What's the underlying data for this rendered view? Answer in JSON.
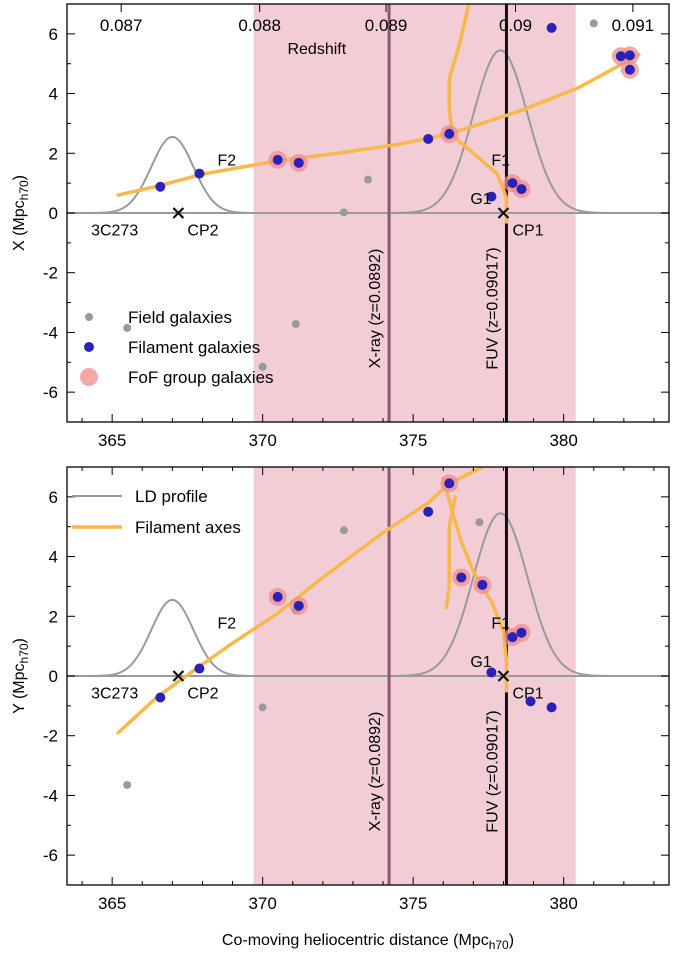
{
  "colors": {
    "band": "#f2cdd6",
    "xray_line": "#8c5a6e",
    "fuv_line": "#111111",
    "green_axis": "#7cc36a",
    "filament_axis": "#f8b84a",
    "ld_profile": "#9a9a9a",
    "field": "#9a9a9a",
    "filament": "#2a22b8",
    "fof": "#f08c8c"
  },
  "chart_data": [
    {
      "type": "scatter",
      "panel": "top",
      "xlabel": "",
      "ylabel": "X (Mpc",
      "ylabel_sub": "h70",
      "ylabel_tail": ")",
      "xlim": [
        363.5,
        383.5
      ],
      "ylim": [
        -7,
        7
      ],
      "x_ticks": [
        "365",
        "370",
        "375",
        "380"
      ],
      "x_tick_values": [
        365,
        370,
        375,
        380
      ],
      "y_ticks": [
        "6",
        "4",
        "2",
        "0",
        "-2",
        "-4",
        "-6"
      ],
      "y_tick_values": [
        6,
        4,
        2,
        0,
        -2,
        -4,
        -6
      ],
      "top_axis_label": "Redshift",
      "redshift_ticks": [
        "0.087",
        "0.088",
        "0.089",
        "0.09",
        "0.091"
      ],
      "redshift_tick_positions": [
        365.3,
        369.9,
        374.1,
        378.4,
        382.3
      ],
      "band_range": [
        369.7,
        380.4
      ],
      "vertical_lines": [
        {
          "x": 374.2,
          "label": "X-ray (z=0.0892)",
          "kind": "xray"
        },
        {
          "x": 378.1,
          "label": "FUV (z=0.09017)",
          "kind": "fuv"
        }
      ],
      "ld_profiles": [
        {
          "center": 367.0,
          "amp": 2.55,
          "sigma": 0.7
        },
        {
          "center": 377.9,
          "amp": 5.45,
          "sigma": 0.9
        }
      ],
      "filament_axes": [
        {
          "name": "",
          "points": [
            [
              365.2,
              0.6
            ],
            [
              366.5,
              0.9
            ],
            [
              368.0,
              1.3
            ],
            [
              370.5,
              1.75
            ],
            [
              372.5,
              2.0
            ],
            [
              374.5,
              2.3
            ],
            [
              376.2,
              2.65
            ],
            [
              378.5,
              3.4
            ],
            [
              380.5,
              4.2
            ],
            [
              382.5,
              5.3
            ]
          ]
        },
        {
          "name": "",
          "points": [
            [
              376.9,
              7.2
            ],
            [
              376.5,
              5.5
            ],
            [
              376.2,
              4.5
            ],
            [
              376.2,
              3.5
            ],
            [
              376.3,
              2.6
            ],
            [
              377.0,
              2.0
            ],
            [
              377.8,
              1.3
            ],
            [
              378.1,
              0.5
            ],
            [
              378.1,
              -0.3
            ]
          ]
        }
      ],
      "field_galaxies": [
        [
          365.5,
          -3.85
        ],
        [
          371.1,
          -3.72
        ],
        [
          373.5,
          1.12
        ],
        [
          372.7,
          0.02
        ],
        [
          370.0,
          -5.15
        ],
        [
          376.2,
          2.75
        ],
        [
          381.0,
          6.35
        ]
      ],
      "filament_galaxies": [
        [
          366.6,
          0.88
        ],
        [
          367.9,
          1.32
        ],
        [
          370.5,
          1.78
        ],
        [
          371.2,
          1.68
        ],
        [
          375.5,
          2.48
        ],
        [
          376.2,
          2.65
        ],
        [
          377.6,
          0.55
        ],
        [
          378.3,
          1.0
        ],
        [
          378.6,
          0.8
        ],
        [
          379.6,
          6.2
        ],
        [
          381.9,
          5.25
        ],
        [
          382.2,
          5.28
        ],
        [
          382.2,
          4.8
        ]
      ],
      "fof_galaxies": [
        [
          370.5,
          1.78
        ],
        [
          371.2,
          1.68
        ],
        [
          376.2,
          2.65
        ],
        [
          378.3,
          1.0
        ],
        [
          378.6,
          0.8
        ],
        [
          381.9,
          5.25
        ],
        [
          382.2,
          5.28
        ],
        [
          382.2,
          4.8
        ]
      ],
      "markers": [
        {
          "x": 367.2,
          "y": 0.0,
          "label": "CP2"
        },
        {
          "x": 378.0,
          "y": 0.0,
          "label": "CP1"
        }
      ],
      "annotations": [
        {
          "text": "3C273",
          "x": 364.3,
          "y": -0.55
        },
        {
          "text": "CP2",
          "x": 367.5,
          "y": -0.55
        },
        {
          "text": "F2",
          "x": 368.5,
          "y": 1.8
        },
        {
          "text": "F1",
          "x": 377.6,
          "y": 1.8
        },
        {
          "text": "G1",
          "x": 376.9,
          "y": 0.5
        },
        {
          "text": "CP1",
          "x": 378.3,
          "y": -0.55
        }
      ],
      "legend": [
        {
          "label": "Field galaxies",
          "kind": "field"
        },
        {
          "label": "Filament galaxies",
          "kind": "filament"
        },
        {
          "label": "FoF group galaxies",
          "kind": "fof"
        }
      ],
      "legend_position": "bottom-left"
    },
    {
      "type": "scatter",
      "panel": "bottom",
      "xlabel": "Co-moving heliocentric distance (Mpc",
      "xlabel_sub": "h70",
      "xlabel_tail": ")",
      "ylabel": "Y (Mpc",
      "ylabel_sub": "h70",
      "ylabel_tail": ")",
      "xlim": [
        363.5,
        383.5
      ],
      "ylim": [
        -7,
        7
      ],
      "x_ticks": [
        "365",
        "370",
        "375",
        "380"
      ],
      "x_tick_values": [
        365,
        370,
        375,
        380
      ],
      "y_ticks": [
        "6",
        "4",
        "2",
        "0",
        "-2",
        "-4",
        "-6"
      ],
      "y_tick_values": [
        6,
        4,
        2,
        0,
        -2,
        -4,
        -6
      ],
      "band_range": [
        369.7,
        380.4
      ],
      "vertical_lines": [
        {
          "x": 374.2,
          "label": "X-ray (z=0.0892)",
          "kind": "xray"
        },
        {
          "x": 378.1,
          "label": "FUV (z=0.09017)",
          "kind": "fuv"
        }
      ],
      "ld_profiles": [
        {
          "center": 367.0,
          "amp": 2.55,
          "sigma": 0.7
        },
        {
          "center": 377.9,
          "amp": 5.45,
          "sigma": 0.9
        }
      ],
      "filament_axes": [
        {
          "name": "",
          "points": [
            [
              365.2,
              -1.9
            ],
            [
              366.5,
              -0.7
            ],
            [
              367.8,
              0.25
            ],
            [
              369.0,
              1.1
            ],
            [
              370.5,
              2.1
            ],
            [
              372.0,
              3.3
            ],
            [
              374.0,
              4.8
            ],
            [
              375.5,
              5.8
            ],
            [
              376.2,
              6.45
            ],
            [
              377.3,
              7.0
            ]
          ]
        },
        {
          "name": "",
          "points": [
            [
              376.0,
              6.6
            ],
            [
              376.3,
              5.5
            ],
            [
              376.6,
              4.5
            ],
            [
              377.0,
              3.5
            ],
            [
              377.6,
              2.5
            ],
            [
              378.0,
              1.5
            ],
            [
              378.1,
              0.5
            ],
            [
              378.1,
              -0.5
            ]
          ]
        },
        {
          "name": "",
          "points": [
            [
              376.4,
              6.0
            ],
            [
              376.2,
              5.0
            ],
            [
              376.2,
              4.0
            ],
            [
              376.2,
              3.0
            ],
            [
              376.1,
              2.3
            ]
          ]
        }
      ],
      "field_galaxies": [
        [
          365.5,
          -3.65
        ],
        [
          372.7,
          4.88
        ],
        [
          371.1,
          2.2
        ],
        [
          370.0,
          -1.05
        ],
        [
          376.2,
          6.5
        ],
        [
          377.2,
          5.15
        ]
      ],
      "filament_galaxies": [
        [
          366.6,
          -0.72
        ],
        [
          367.9,
          0.25
        ],
        [
          370.5,
          2.65
        ],
        [
          371.2,
          2.35
        ],
        [
          375.5,
          5.5
        ],
        [
          376.2,
          6.45
        ],
        [
          376.6,
          3.3
        ],
        [
          377.3,
          3.05
        ],
        [
          377.6,
          0.12
        ],
        [
          378.3,
          1.3
        ],
        [
          378.6,
          1.45
        ],
        [
          378.9,
          -0.85
        ],
        [
          379.6,
          -1.05
        ]
      ],
      "fof_galaxies": [
        [
          370.5,
          2.65
        ],
        [
          371.2,
          2.35
        ],
        [
          376.2,
          6.45
        ],
        [
          376.6,
          3.3
        ],
        [
          377.3,
          3.05
        ],
        [
          378.3,
          1.3
        ],
        [
          378.6,
          1.45
        ]
      ],
      "markers": [
        {
          "x": 367.2,
          "y": 0.0,
          "label": "CP2"
        },
        {
          "x": 378.0,
          "y": 0.0,
          "label": "CP1"
        }
      ],
      "annotations": [
        {
          "text": "3C273",
          "x": 364.3,
          "y": -0.55
        },
        {
          "text": "CP2",
          "x": 367.5,
          "y": -0.55
        },
        {
          "text": "F2",
          "x": 368.5,
          "y": 1.8
        },
        {
          "text": "F1",
          "x": 377.6,
          "y": 1.8
        },
        {
          "text": "G1",
          "x": 376.9,
          "y": 0.5
        },
        {
          "text": "CP1",
          "x": 378.3,
          "y": -0.55
        }
      ],
      "legend": [
        {
          "label": "LD profile",
          "kind": "ld"
        },
        {
          "label": "Filament axes",
          "kind": "axis"
        }
      ],
      "legend_position": "top-left"
    }
  ]
}
